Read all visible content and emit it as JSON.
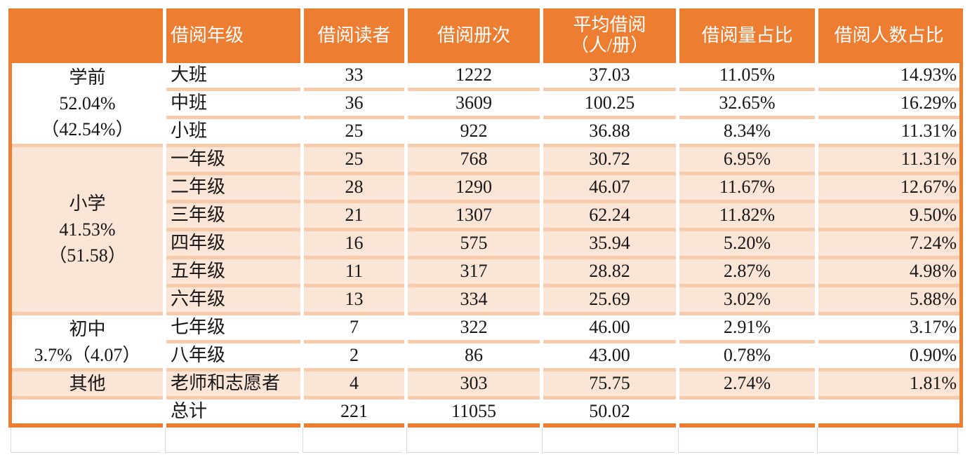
{
  "chart_data": {
    "type": "table",
    "columns": [
      "",
      "借阅年级",
      "借阅读者",
      "借阅册次",
      "平均借阅\n（人/册）",
      "借阅量占比",
      "借阅人数占比"
    ],
    "groups": [
      {
        "label": "学前",
        "volume_share": "52.04%",
        "people_share": "（42.54%）",
        "display": "学前\n52.04%\n（42.54%）",
        "row_span": 3,
        "shade": "white"
      },
      {
        "label": "小学",
        "volume_share": "41.53%",
        "people_share": "（51.58）",
        "display": "小学\n41.53%\n（51.58）",
        "row_span": 6,
        "shade": "peach"
      },
      {
        "label": "初中",
        "volume_share": "3.7%",
        "people_share": "（4.07）",
        "display": "初中\n3.7%（4.07）",
        "row_span": 2,
        "shade": "white"
      },
      {
        "label": "其他",
        "display": "其他",
        "row_span": 1,
        "shade": "peach"
      }
    ],
    "rows": [
      {
        "grade": "大班",
        "readers": "33",
        "volumes": "1222",
        "avg_per_person": "37.03",
        "volume_pct": "11.05%",
        "people_pct": "14.93%",
        "shade": "white"
      },
      {
        "grade": "中班",
        "readers": "36",
        "volumes": "3609",
        "avg_per_person": "100.25",
        "volume_pct": "32.65%",
        "people_pct": "16.29%",
        "shade": "white"
      },
      {
        "grade": "小班",
        "readers": "25",
        "volumes": "922",
        "avg_per_person": "36.88",
        "volume_pct": "8.34%",
        "people_pct": "11.31%",
        "shade": "white"
      },
      {
        "grade": "一年级",
        "readers": "25",
        "volumes": "768",
        "avg_per_person": "30.72",
        "volume_pct": "6.95%",
        "people_pct": "11.31%",
        "shade": "peach"
      },
      {
        "grade": "二年级",
        "readers": "28",
        "volumes": "1290",
        "avg_per_person": "46.07",
        "volume_pct": "11.67%",
        "people_pct": "12.67%",
        "shade": "peach"
      },
      {
        "grade": "三年级",
        "readers": "21",
        "volumes": "1307",
        "avg_per_person": "62.24",
        "volume_pct": "11.82%",
        "people_pct": "9.50%",
        "shade": "peach"
      },
      {
        "grade": "四年级",
        "readers": "16",
        "volumes": "575",
        "avg_per_person": "35.94",
        "volume_pct": "5.20%",
        "people_pct": "7.24%",
        "shade": "peach"
      },
      {
        "grade": "五年级",
        "readers": "11",
        "volumes": "317",
        "avg_per_person": "28.82",
        "volume_pct": "2.87%",
        "people_pct": "4.98%",
        "shade": "peach"
      },
      {
        "grade": "六年级",
        "readers": "13",
        "volumes": "334",
        "avg_per_person": "25.69",
        "volume_pct": "3.02%",
        "people_pct": "5.88%",
        "shade": "peach"
      },
      {
        "grade": "七年级",
        "readers": "7",
        "volumes": "322",
        "avg_per_person": "46.00",
        "volume_pct": "2.91%",
        "people_pct": "3.17%",
        "shade": "white"
      },
      {
        "grade": "八年级",
        "readers": "2",
        "volumes": "86",
        "avg_per_person": "43.00",
        "volume_pct": "0.78%",
        "people_pct": "0.90%",
        "shade": "white"
      },
      {
        "grade": "老师和志愿者",
        "readers": "4",
        "volumes": "303",
        "avg_per_person": "75.75",
        "volume_pct": "2.74%",
        "people_pct": "1.81%",
        "shade": "peach"
      }
    ],
    "total_row": {
      "grade": "总计",
      "readers": "221",
      "volumes": "11055",
      "avg_per_person": "50.02",
      "volume_pct": "",
      "people_pct": "",
      "shade": "white"
    }
  },
  "colors": {
    "accent_orange": "#ED7D31",
    "row_peach": "#FBE5D6",
    "separator_peach": "#F8CBAD",
    "gridline_gray": "#D6DCE4",
    "text": "#161616",
    "background": "#FFFFFF"
  }
}
